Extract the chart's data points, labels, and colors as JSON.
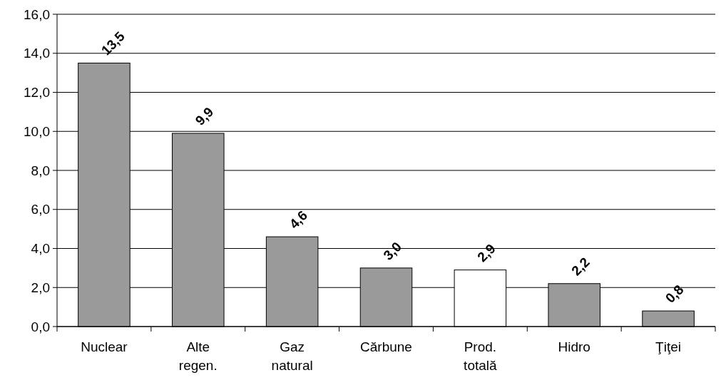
{
  "chart_data": {
    "type": "bar",
    "categories": [
      "Nuclear",
      "Alte regen.",
      "Gaz natural",
      "Cărbune",
      "Prod. totală",
      "Hidro",
      "Ţiţei"
    ],
    "values": [
      13.5,
      9.9,
      4.6,
      3.0,
      2.9,
      2.2,
      0.8
    ],
    "colors": [
      "#9a9a9a",
      "#9a9a9a",
      "#9a9a9a",
      "#9a9a9a",
      "#ffffff",
      "#9a9a9a",
      "#9a9a9a"
    ],
    "value_labels": [
      "13,5",
      "9,9",
      "4,6",
      "3,0",
      "2,9",
      "2,2",
      "0,8"
    ],
    "ylim": [
      0,
      16
    ],
    "yticks": [
      {
        "value": 0,
        "label": "0,0"
      },
      {
        "value": 2,
        "label": "2,0"
      },
      {
        "value": 4,
        "label": "4,0"
      },
      {
        "value": 6,
        "label": "6,0"
      },
      {
        "value": 8,
        "label": "8,0"
      },
      {
        "value": 10,
        "label": "10,0"
      },
      {
        "value": 12,
        "label": "12,0"
      },
      {
        "value": 14,
        "label": "14,0"
      },
      {
        "value": 16,
        "label": "16,0"
      }
    ],
    "grid": "y"
  }
}
